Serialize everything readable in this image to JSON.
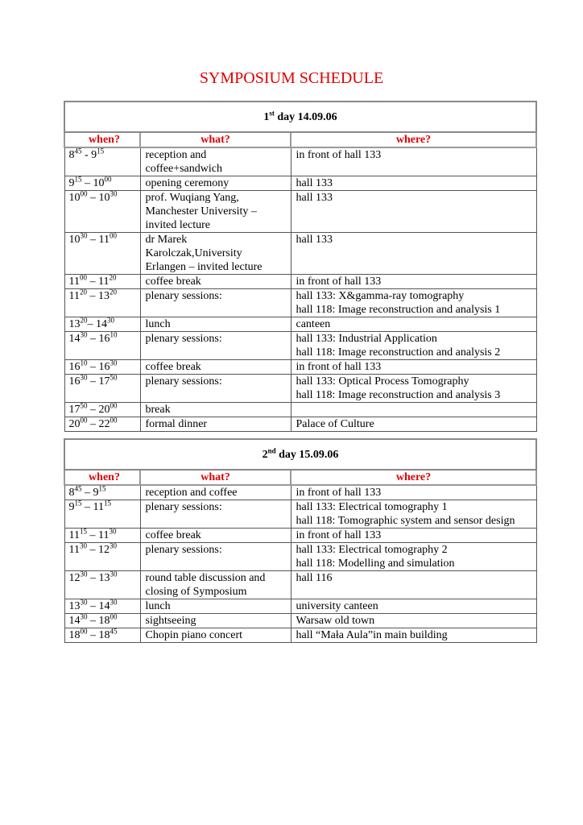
{
  "title": "SYMPOSIUM SCHEDULE",
  "headers": {
    "when": "when?",
    "what": "what?",
    "where": "where?"
  },
  "days": [
    {
      "label_num": "1",
      "label_sup": "st",
      "label_rest": " day 14.09.06",
      "rows": [
        {
          "h1": "8",
          "m1": "45",
          "sep": " - ",
          "h2": "9",
          "m2": "15",
          "what": [
            "reception and",
            "coffee+sandwich"
          ],
          "where": [
            "in front of hall 133"
          ]
        },
        {
          "h1": "9",
          "m1": "15",
          "sep": " – ",
          "h2": "10",
          "m2": "00",
          "what": [
            "opening ceremony"
          ],
          "where": [
            "hall 133"
          ]
        },
        {
          "h1": "10",
          "m1": "00",
          "sep": " – ",
          "h2": "10",
          "m2": "30",
          "what": [
            "prof.  Wuqiang  Yang,",
            "Manchester University –",
            "invited lecture"
          ],
          "where": [
            "hall 133"
          ]
        },
        {
          "h1": "10",
          "m1": "30",
          "sep": " – ",
          "h2": "11",
          "m2": "00",
          "what": [
            "dr  Marek",
            "Karolczak,University",
            "Erlangen  – invited lecture"
          ],
          "where": [
            "hall 133"
          ]
        },
        {
          "h1": "11",
          "m1": "00",
          "sep": " – ",
          "h2": "11",
          "m2": "20",
          "what": [
            "coffee break"
          ],
          "where": [
            "in front of hall 133"
          ]
        },
        {
          "h1": "11",
          "m1": "20",
          "sep": " – ",
          "h2": "13",
          "m2": "20",
          "what": [
            "plenary sessions:"
          ],
          "where": [
            "hall 133: X&gamma-ray tomography",
            "hall 118: Image reconstruction and analysis 1"
          ]
        },
        {
          "h1": "13",
          "m1": "20",
          "sep": "– ",
          "h2": "14",
          "m2": "30",
          "what": [
            "lunch"
          ],
          "where": [
            "canteen"
          ]
        },
        {
          "h1": "14",
          "m1": "30",
          "sep": " – ",
          "h2": "16",
          "m2": "10",
          "what": [
            "plenary sessions:"
          ],
          "where": [
            "hall 133: Industrial Application",
            "hall 118: Image reconstruction and analysis 2"
          ]
        },
        {
          "h1": "16",
          "m1": "10",
          "sep": " – ",
          "h2": "16",
          "m2": "30",
          "what": [
            "coffee break"
          ],
          "where": [
            "in front of hall 133"
          ]
        },
        {
          "h1": "16",
          "m1": "30",
          "sep": " – ",
          "h2": "17",
          "m2": "50",
          "what": [
            "plenary sessions:"
          ],
          "where": [
            "hall 133: Optical Process Tomography",
            "hall 118: Image reconstruction and analysis 3"
          ]
        },
        {
          "h1": "17",
          "m1": "50",
          "sep": " – ",
          "h2": "20",
          "m2": "00",
          "what": [
            "break"
          ],
          "where": [
            ""
          ]
        },
        {
          "h1": "20",
          "m1": "00",
          "sep": " – ",
          "h2": "22",
          "m2": "00",
          "what": [
            "formal dinner"
          ],
          "where": [
            "Palace of Culture"
          ]
        }
      ]
    },
    {
      "label_num": "2",
      "label_sup": "nd",
      "label_rest": " day 15.09.06",
      "rows": [
        {
          "h1": "8",
          "m1": "45",
          "sep": " – ",
          "h2": "9",
          "m2": "15",
          "what": [
            "reception and coffee"
          ],
          "where": [
            "in front of hall 133"
          ]
        },
        {
          "h1": "9",
          "m1": "15",
          "sep": " – ",
          "h2": "11",
          "m2": "15",
          "what": [
            "plenary sessions:"
          ],
          "where": [
            "hall 133: Electrical tomography 1",
            "hall 118: Tomographic system and sensor design"
          ]
        },
        {
          "h1": "11",
          "m1": "15",
          "sep": " – ",
          "h2": "11",
          "m2": "30",
          "what": [
            "coffee break"
          ],
          "where": [
            "in front of hall 133"
          ]
        },
        {
          "h1": "11",
          "m1": "30",
          "sep": " – ",
          "h2": "12",
          "m2": "30",
          "what": [
            "plenary sessions:"
          ],
          "where": [
            "hall 133: Electrical tomography 2",
            "hall 118: Modelling and simulation"
          ]
        },
        {
          "h1": "12",
          "m1": "30",
          "sep": " – ",
          "h2": "13",
          "m2": "30",
          "what": [
            "round table discussion and",
            "closing of Symposium"
          ],
          "where": [
            "hall 116"
          ]
        },
        {
          "h1": "13",
          "m1": "30",
          "sep": " – ",
          "h2": "14",
          "m2": "30",
          "what": [
            "lunch"
          ],
          "where": [
            "university canteen"
          ]
        },
        {
          "h1": "14",
          "m1": "30",
          "sep": " – ",
          "h2": "18",
          "m2": "00",
          "what": [
            "sightseeing"
          ],
          "where": [
            "Warsaw old town"
          ]
        },
        {
          "h1": "18",
          "m1": "00",
          "sep": " – ",
          "h2": "18",
          "m2": "45",
          "what": [
            "Chopin piano concert"
          ],
          "where": [
            "hall “Mała Aula”in main building"
          ]
        }
      ]
    }
  ]
}
